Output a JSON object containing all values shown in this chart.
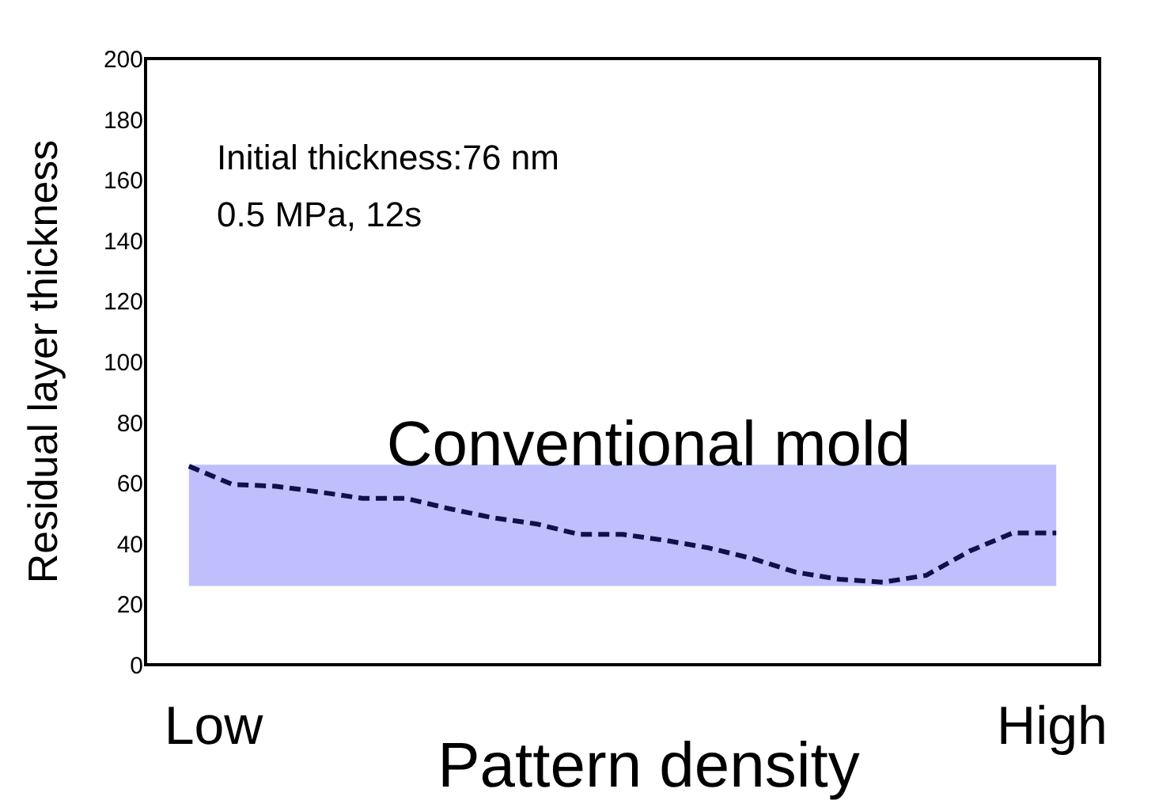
{
  "chart_data": {
    "type": "line",
    "xlabel": "Pattern density",
    "ylabel": "Residual layer thickness",
    "categories": [
      null,
      null,
      null,
      null,
      null,
      null,
      null,
      null,
      null,
      null,
      null,
      null,
      null,
      null,
      null,
      null,
      null,
      null,
      null,
      null,
      null
    ],
    "series": [
      {
        "color": "#10104a",
        "values": [
          65.5,
          59.5,
          58.9,
          57,
          54.9,
          54.9,
          51.5,
          48.5,
          46.5,
          43,
          43,
          41,
          38.5,
          35,
          30.5,
          28.2,
          27.2,
          29.5,
          37.5,
          43.5,
          43.5
        ]
      }
    ],
    "ylim": [
      0,
      200
    ],
    "yticks": [
      0,
      20,
      40,
      60,
      80,
      100,
      120,
      140,
      160,
      180,
      200
    ],
    "tick_labels": "y",
    "line_style": "dashed",
    "marker": "none",
    "grid": false,
    "bands": [
      {
        "axis": "y",
        "from": 26,
        "to": 66,
        "color": "#bfbffd"
      }
    ],
    "annotations": [
      "Initial thickness:76 nm",
      "0.5 MPa, 12s",
      "Conventional mold",
      "Low",
      "High"
    ]
  }
}
